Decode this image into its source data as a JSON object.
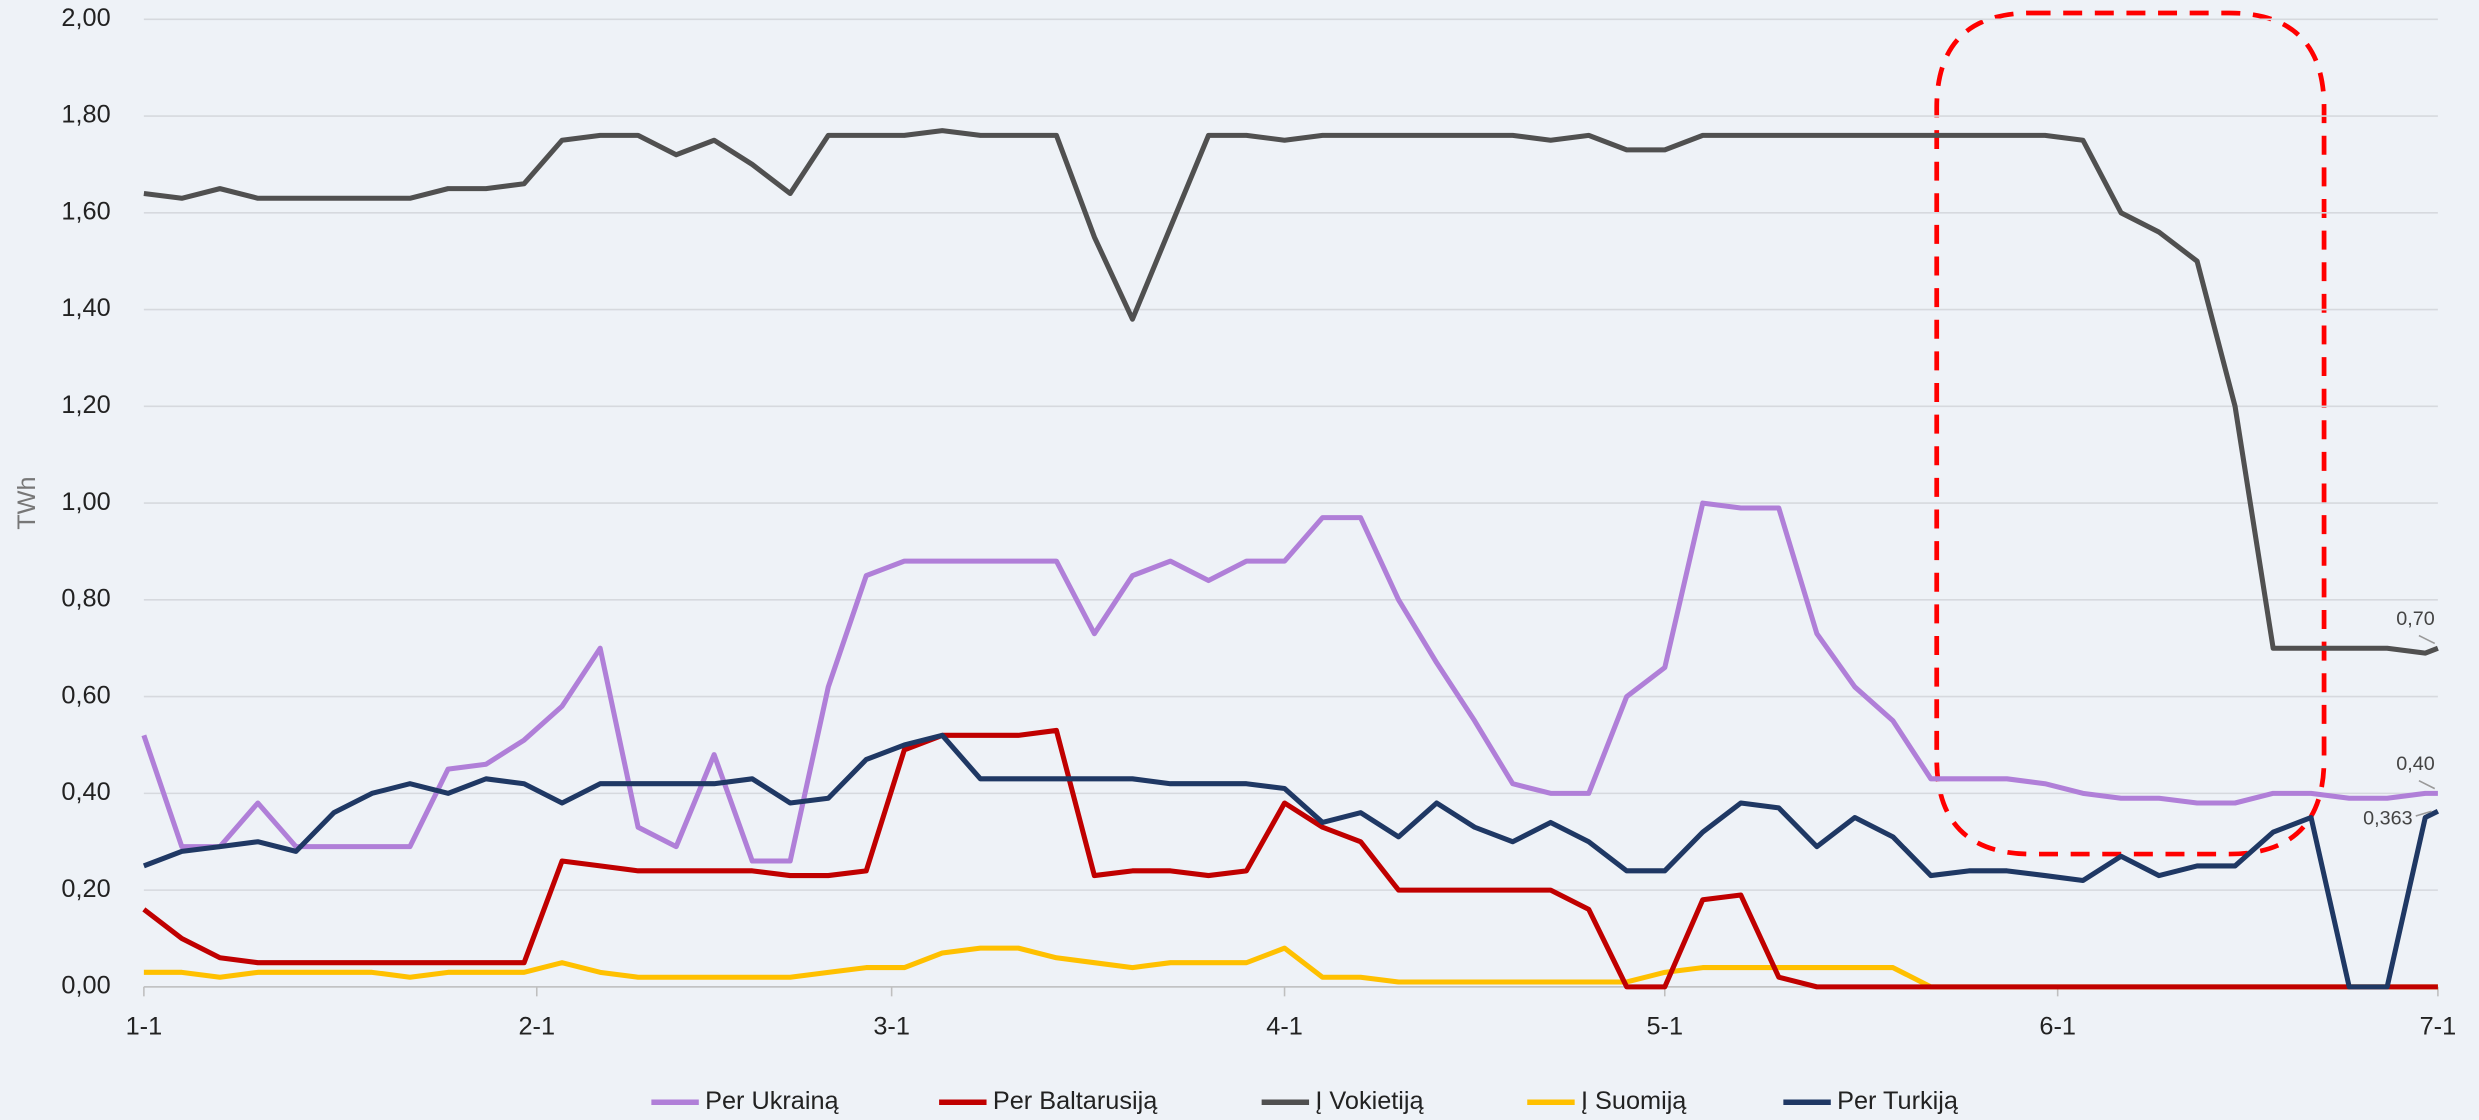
{
  "chart_data": {
    "type": "line",
    "y_label": "TWh",
    "x": [
      0,
      3,
      6,
      9,
      12,
      15,
      18,
      21,
      24,
      27,
      30,
      33,
      36,
      39,
      42,
      45,
      48,
      51,
      54,
      57,
      60,
      63,
      66,
      69,
      72,
      75,
      78,
      81,
      84,
      87,
      90,
      93,
      96,
      99,
      102,
      105,
      108,
      111,
      114,
      117,
      120,
      123,
      126,
      129,
      132,
      135,
      138,
      141,
      144,
      147,
      150,
      153,
      156,
      159,
      162,
      165,
      168,
      171,
      174,
      177,
      180,
      181
    ],
    "xlim": [
      0,
      181
    ],
    "xticks": [
      {
        "value": 0,
        "label": "1-1"
      },
      {
        "value": 31,
        "label": "2-1"
      },
      {
        "value": 59,
        "label": "3-1"
      },
      {
        "value": 90,
        "label": "4-1"
      },
      {
        "value": 120,
        "label": "5-1"
      },
      {
        "value": 151,
        "label": "6-1"
      },
      {
        "value": 181,
        "label": "7-1"
      }
    ],
    "ylim": [
      0,
      2
    ],
    "yticks": [
      {
        "value": 0,
        "label": "0,00"
      },
      {
        "value": 0.2,
        "label": "0,20"
      },
      {
        "value": 0.4,
        "label": "0,40"
      },
      {
        "value": 0.6,
        "label": "0,60"
      },
      {
        "value": 0.8,
        "label": "0,80"
      },
      {
        "value": 1,
        "label": "1,00"
      },
      {
        "value": 1.2,
        "label": "1,20"
      },
      {
        "value": 1.4,
        "label": "1,40"
      },
      {
        "value": 1.6,
        "label": "1,60"
      },
      {
        "value": 1.8,
        "label": "1,80"
      },
      {
        "value": 2,
        "label": "2,00"
      }
    ],
    "grid": true,
    "legend": "bottom",
    "series": [
      {
        "name": "Per Ukrainą",
        "color": "#b07fd8",
        "values": [
          0.52,
          0.29,
          0.29,
          0.38,
          0.29,
          0.29,
          0.29,
          0.29,
          0.45,
          0.46,
          0.51,
          0.58,
          0.7,
          0.33,
          0.29,
          0.48,
          0.26,
          0.26,
          0.62,
          0.85,
          0.88,
          0.88,
          0.88,
          0.88,
          0.88,
          0.73,
          0.85,
          0.88,
          0.84,
          0.88,
          0.88,
          0.97,
          0.97,
          0.8,
          0.67,
          0.55,
          0.42,
          0.4,
          0.4,
          0.6,
          0.66,
          1.0,
          0.99,
          0.99,
          0.73,
          0.62,
          0.55,
          0.43,
          0.43,
          0.43,
          0.42,
          0.4,
          0.39,
          0.39,
          0.38,
          0.38,
          0.4,
          0.4,
          0.39,
          0.39,
          0.4,
          0.4
        ],
        "value_labels": [
          null,
          null,
          null,
          null,
          null,
          null,
          null,
          null,
          null,
          null,
          null,
          null,
          null,
          null,
          null,
          null,
          null,
          null,
          null,
          null,
          null,
          null,
          null,
          null,
          null,
          null,
          null,
          null,
          null,
          null,
          null,
          null,
          null,
          null,
          null,
          null,
          null,
          null,
          null,
          null,
          null,
          null,
          null,
          null,
          null,
          null,
          null,
          null,
          null,
          null,
          null,
          null,
          null,
          null,
          null,
          null,
          null,
          null,
          null,
          null,
          null,
          "0,40"
        ]
      },
      {
        "name": "Per Baltarusiją",
        "color": "#c00000",
        "values": [
          0.16,
          0.1,
          0.06,
          0.05,
          0.05,
          0.05,
          0.05,
          0.05,
          0.05,
          0.05,
          0.05,
          0.26,
          0.25,
          0.24,
          0.24,
          0.24,
          0.24,
          0.23,
          0.23,
          0.24,
          0.49,
          0.52,
          0.52,
          0.52,
          0.53,
          0.23,
          0.24,
          0.24,
          0.23,
          0.24,
          0.38,
          0.33,
          0.3,
          0.2,
          0.2,
          0.2,
          0.2,
          0.2,
          0.16,
          0,
          0,
          0.18,
          0.19,
          0.02,
          0,
          0,
          0,
          0,
          0,
          0,
          0,
          0,
          0,
          0,
          0,
          0,
          0,
          0,
          0,
          0,
          0,
          0
        ]
      },
      {
        "name": "Į Vokietiją",
        "color": "#505050",
        "values": [
          1.64,
          1.63,
          1.65,
          1.63,
          1.63,
          1.63,
          1.63,
          1.63,
          1.65,
          1.65,
          1.66,
          1.75,
          1.76,
          1.76,
          1.72,
          1.75,
          1.7,
          1.64,
          1.76,
          1.76,
          1.76,
          1.77,
          1.76,
          1.76,
          1.76,
          1.55,
          1.38,
          1.57,
          1.76,
          1.76,
          1.75,
          1.76,
          1.76,
          1.76,
          1.76,
          1.76,
          1.76,
          1.75,
          1.76,
          1.73,
          1.73,
          1.76,
          1.76,
          1.76,
          1.76,
          1.76,
          1.76,
          1.76,
          1.76,
          1.76,
          1.76,
          1.75,
          1.6,
          1.56,
          1.5,
          1.2,
          0.7,
          0.7,
          0.7,
          0.7,
          0.69,
          0.7
        ],
        "value_labels": [
          null,
          null,
          null,
          null,
          null,
          null,
          null,
          null,
          null,
          null,
          null,
          null,
          null,
          null,
          null,
          null,
          null,
          null,
          null,
          null,
          null,
          null,
          null,
          null,
          null,
          null,
          null,
          null,
          null,
          null,
          null,
          null,
          null,
          null,
          null,
          null,
          null,
          null,
          null,
          null,
          null,
          null,
          null,
          null,
          null,
          null,
          null,
          null,
          null,
          null,
          null,
          null,
          null,
          null,
          null,
          null,
          null,
          null,
          null,
          null,
          null,
          "0,70"
        ]
      },
      {
        "name": "Į Suomiją",
        "color": "#ffc000",
        "values": [
          0.03,
          0.03,
          0.02,
          0.03,
          0.03,
          0.03,
          0.03,
          0.02,
          0.03,
          0.03,
          0.03,
          0.05,
          0.03,
          0.02,
          0.02,
          0.02,
          0.02,
          0.02,
          0.03,
          0.04,
          0.04,
          0.07,
          0.08,
          0.08,
          0.06,
          0.05,
          0.04,
          0.05,
          0.05,
          0.05,
          0.08,
          0.02,
          0.02,
          0.01,
          0.01,
          0.01,
          0.01,
          0.01,
          0.01,
          0.01,
          0.03,
          0.04,
          0.04,
          0.04,
          0.04,
          0.04,
          0.04,
          0,
          0,
          0,
          0,
          0,
          0,
          0,
          0,
          0,
          0,
          0,
          0,
          0,
          0,
          0
        ]
      },
      {
        "name": "Per Turkiją",
        "color": "#1f3864",
        "values": [
          0.25,
          0.28,
          0.29,
          0.3,
          0.28,
          0.36,
          0.4,
          0.42,
          0.4,
          0.43,
          0.42,
          0.38,
          0.42,
          0.42,
          0.42,
          0.42,
          0.43,
          0.38,
          0.39,
          0.47,
          0.5,
          0.52,
          0.43,
          0.43,
          0.43,
          0.43,
          0.43,
          0.42,
          0.42,
          0.42,
          0.41,
          0.34,
          0.36,
          0.31,
          0.38,
          0.33,
          0.3,
          0.34,
          0.3,
          0.24,
          0.24,
          0.32,
          0.38,
          0.37,
          0.29,
          0.35,
          0.31,
          0.23,
          0.24,
          0.24,
          0.23,
          0.22,
          0.27,
          0.23,
          0.25,
          0.25,
          0.32,
          0.35,
          0,
          0,
          0.35,
          0.363
        ],
        "value_labels": [
          null,
          null,
          null,
          null,
          null,
          null,
          null,
          null,
          null,
          null,
          null,
          null,
          null,
          null,
          null,
          null,
          null,
          null,
          null,
          null,
          null,
          null,
          null,
          null,
          null,
          null,
          null,
          null,
          null,
          null,
          null,
          null,
          null,
          null,
          null,
          null,
          null,
          null,
          null,
          null,
          null,
          null,
          null,
          null,
          null,
          null,
          null,
          null,
          null,
          null,
          null,
          null,
          null,
          null,
          null,
          null,
          null,
          null,
          null,
          null,
          null,
          "0,363"
        ]
      }
    ]
  }
}
